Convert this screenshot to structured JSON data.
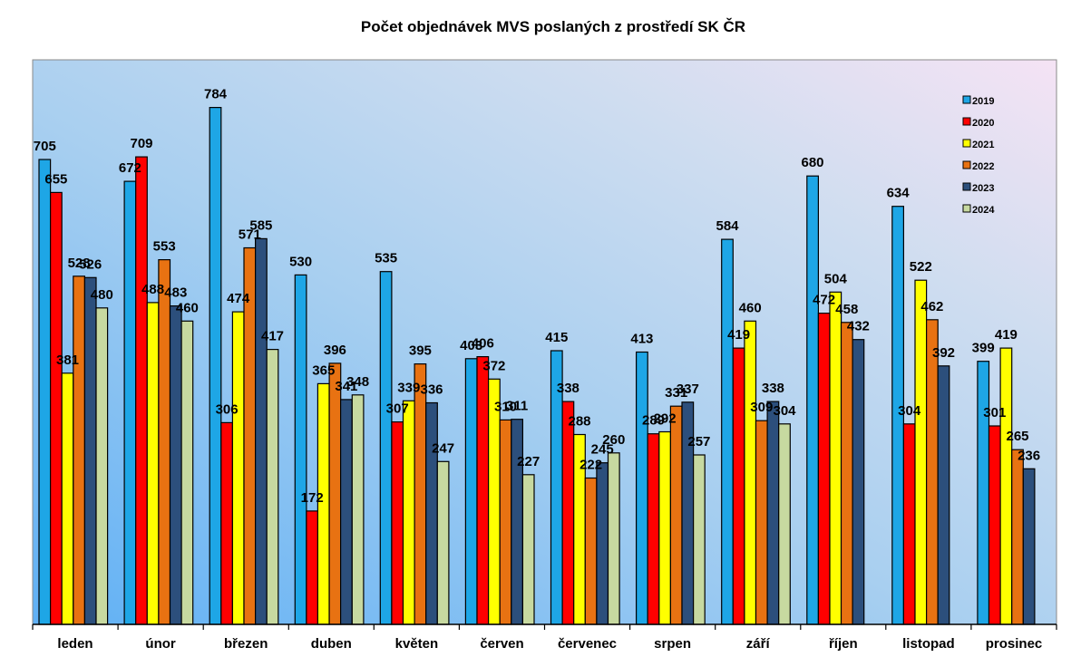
{
  "chart_data": {
    "type": "bar",
    "title": "Počet objednávek MVS poslaných z prostředí SK ČR",
    "xlabel": "",
    "ylabel": "",
    "ylim": [
      0,
      850
    ],
    "grid": false,
    "legend_position": "top-right",
    "categories": [
      "leden",
      "únor",
      "březen",
      "duben",
      "květen",
      "červen",
      "červenec",
      "srpen",
      "září",
      "říjen",
      "listopad",
      "prosinec"
    ],
    "series": [
      {
        "name": "2019",
        "color": "#1EA6E6",
        "values": [
          705,
          672,
          784,
          530,
          535,
          403,
          415,
          413,
          584,
          680,
          634,
          399
        ]
      },
      {
        "name": "2020",
        "color": "#FF0000",
        "values": [
          655,
          709,
          306,
          172,
          307,
          406,
          338,
          289,
          419,
          472,
          304,
          301
        ]
      },
      {
        "name": "2021",
        "color": "#FFFF00",
        "values": [
          381,
          488,
          474,
          365,
          339,
          372,
          288,
          292,
          460,
          504,
          522,
          419
        ]
      },
      {
        "name": "2022",
        "color": "#E87212",
        "values": [
          528,
          553,
          571,
          396,
          395,
          310,
          222,
          331,
          309,
          458,
          462,
          265
        ]
      },
      {
        "name": "2023",
        "color": "#2C4F7C",
        "values": [
          526,
          483,
          585,
          341,
          336,
          311,
          245,
          337,
          338,
          432,
          392,
          236
        ]
      },
      {
        "name": "2024",
        "color": "#C7D9A0",
        "values": [
          480,
          460,
          417,
          348,
          247,
          227,
          260,
          257,
          304,
          null,
          null,
          null
        ]
      }
    ]
  }
}
